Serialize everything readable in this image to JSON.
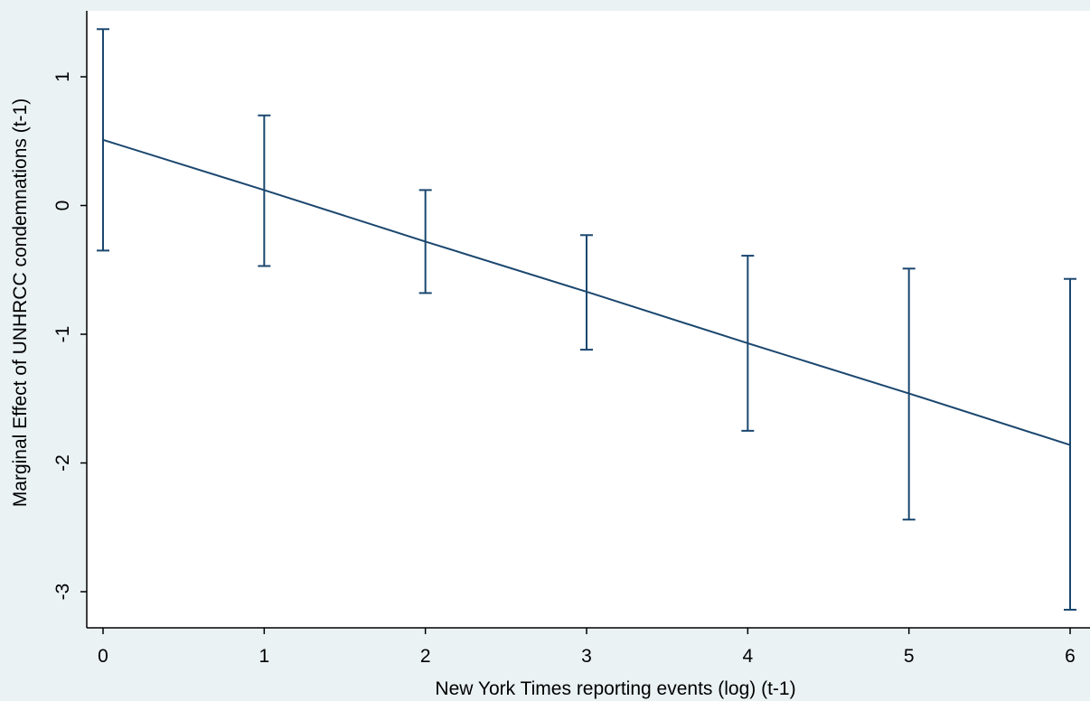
{
  "chart_data": {
    "type": "line",
    "title": "",
    "xlabel": "New York Times reporting events (log) (t-1)",
    "ylabel": "Marginal Effect of UNHRCC condemnations (t-1)",
    "xlim": [
      -0.1,
      6.1
    ],
    "ylim": [
      -3.27,
      1.5
    ],
    "x_ticks": [
      0,
      1,
      2,
      3,
      4,
      5,
      6
    ],
    "x_tick_labels": [
      "0",
      "1",
      "2",
      "3",
      "4",
      "5",
      "6"
    ],
    "y_ticks": [
      1,
      0,
      -1,
      -2,
      -3
    ],
    "y_tick_labels": [
      "1",
      "0",
      "-1",
      "-2",
      "-3"
    ],
    "grid": false,
    "legend": "none",
    "series": [
      {
        "x": [
          0,
          1,
          2,
          3,
          4,
          5,
          6
        ],
        "estimate": [
          0.51,
          0.12,
          -0.28,
          -0.67,
          -1.07,
          -1.46,
          -1.86
        ],
        "ci_upper": [
          1.37,
          0.7,
          0.12,
          -0.23,
          -0.39,
          -0.49,
          -0.57
        ],
        "ci_lower": [
          -0.35,
          -0.47,
          -0.68,
          -1.12,
          -1.75,
          -2.44,
          -3.14
        ]
      }
    ],
    "colors": {
      "line": "#1a476f",
      "axis": "#000000",
      "plot_background": "#ffffff",
      "page_background": "#eaf2f3"
    }
  }
}
